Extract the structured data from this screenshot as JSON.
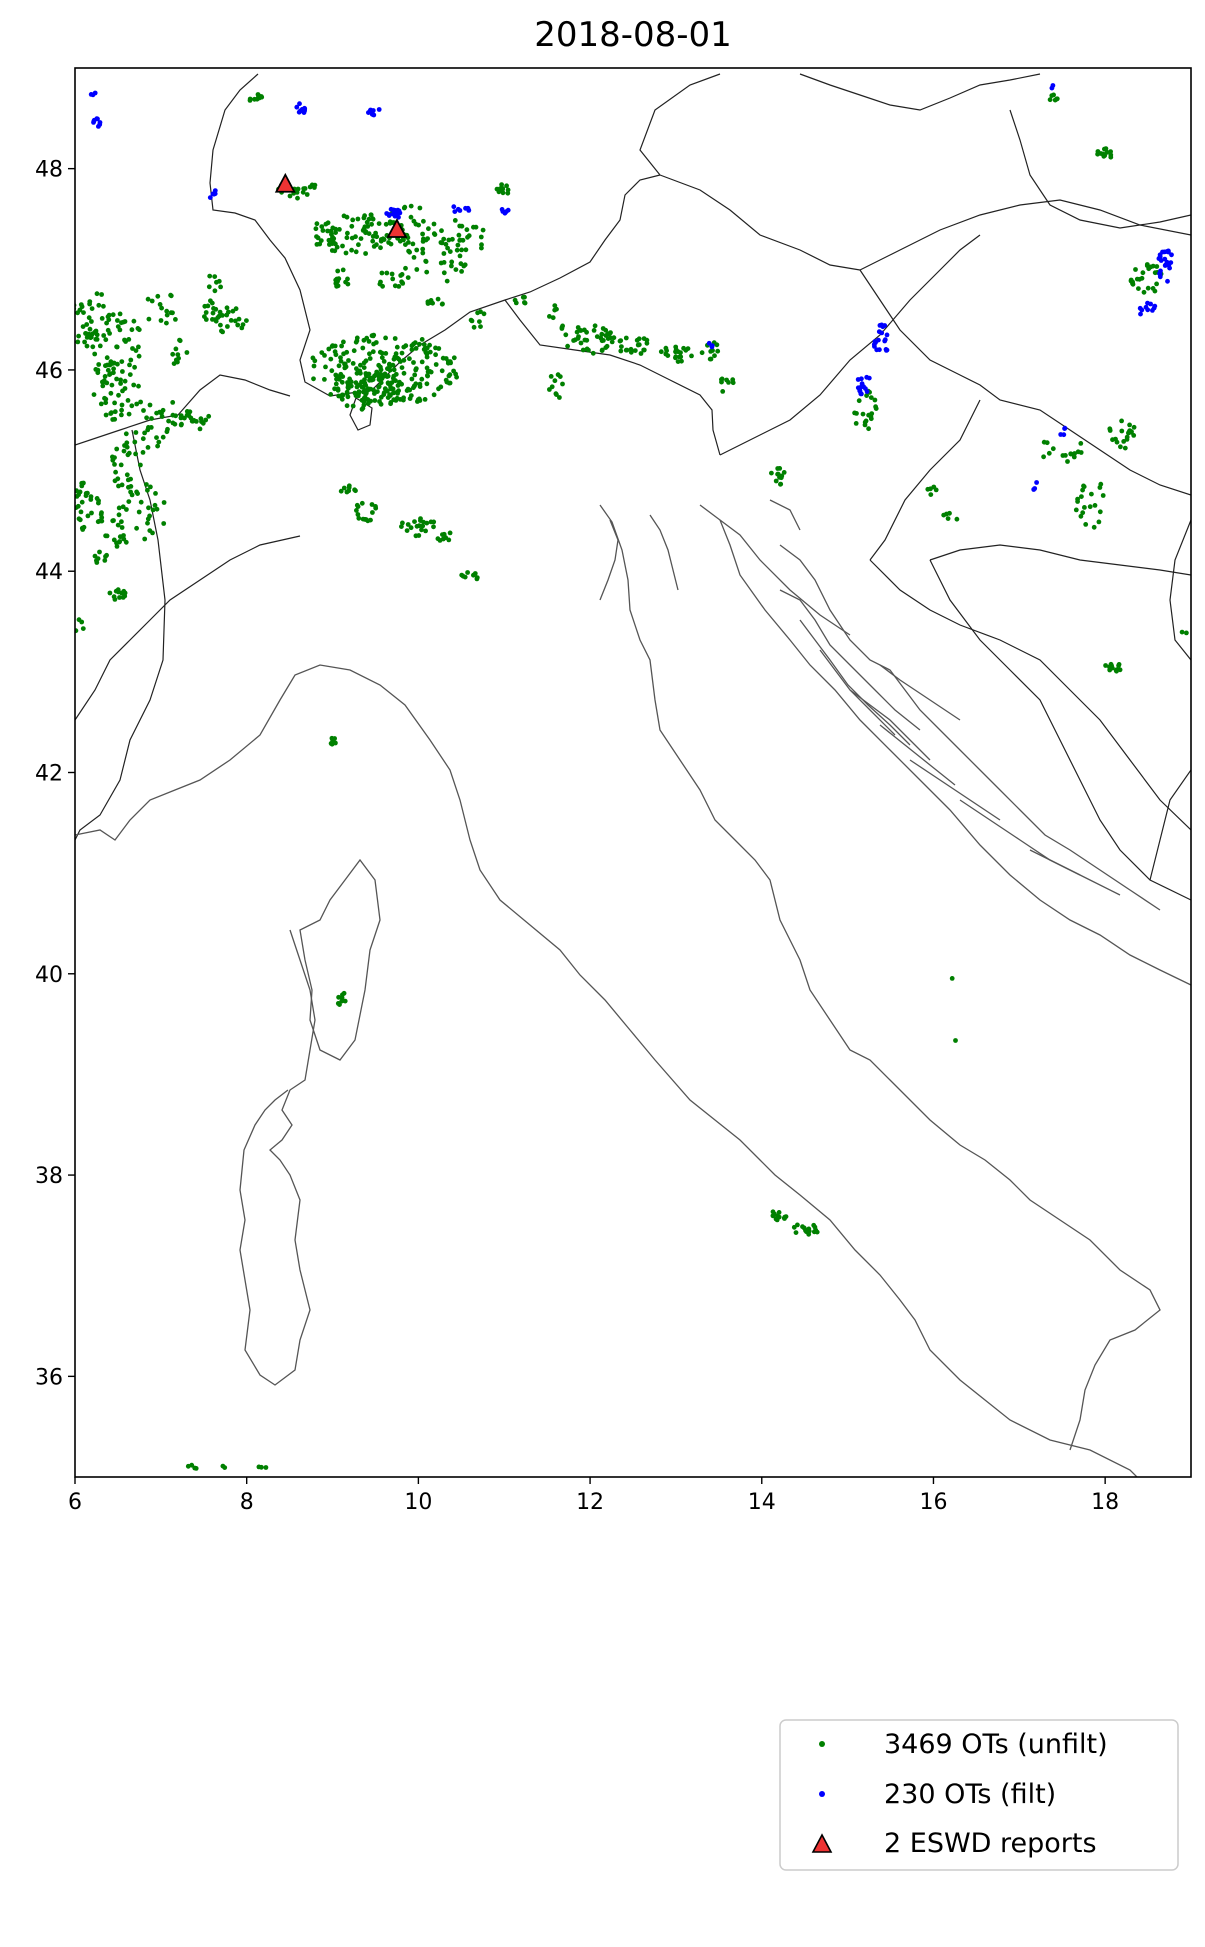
{
  "chart_data": {
    "type": "scatter",
    "title": "2018-08-01",
    "xlim": [
      6,
      19
    ],
    "ylim": [
      35,
      49
    ],
    "x_ticks": [
      6,
      8,
      10,
      12,
      14,
      16,
      18
    ],
    "y_ticks": [
      36,
      38,
      40,
      42,
      44,
      46,
      48
    ],
    "grid": false,
    "legend_position": "bottom-right",
    "colors": {
      "unfiltered": "#008000",
      "filtered": "#0000ff",
      "reports": "#ee3333",
      "coast": "#555555"
    },
    "series": [
      {
        "name": "3469 OTs (unfilt)",
        "marker": "dot",
        "clusters": [
          [
            6.2,
            46.5,
            0.25,
            0.3,
            40
          ],
          [
            6.5,
            46.2,
            0.3,
            0.4,
            50
          ],
          [
            6.5,
            45.8,
            0.3,
            0.3,
            40
          ],
          [
            6.6,
            45.1,
            0.2,
            0.3,
            25
          ],
          [
            6.9,
            45.5,
            0.3,
            0.3,
            30
          ],
          [
            6.8,
            44.6,
            0.3,
            0.3,
            30
          ],
          [
            7.0,
            46.6,
            0.2,
            0.2,
            15
          ],
          [
            7.2,
            46.2,
            0.15,
            0.15,
            10
          ],
          [
            7.4,
            45.5,
            0.2,
            0.1,
            20
          ],
          [
            7.6,
            46.7,
            0.15,
            0.25,
            20
          ],
          [
            7.8,
            46.5,
            0.2,
            0.15,
            20
          ],
          [
            6.15,
            44.6,
            0.2,
            0.2,
            25
          ],
          [
            6.5,
            44.4,
            0.15,
            0.2,
            15
          ],
          [
            6.5,
            43.8,
            0.1,
            0.1,
            12
          ],
          [
            6.3,
            44.1,
            0.1,
            0.1,
            8
          ],
          [
            6.1,
            44.8,
            0.1,
            0.1,
            8
          ],
          [
            8.1,
            48.7,
            0.08,
            0.05,
            10
          ],
          [
            8.6,
            47.8,
            0.25,
            0.1,
            20
          ],
          [
            9.3,
            47.35,
            0.6,
            0.2,
            90
          ],
          [
            9.1,
            46.9,
            0.1,
            0.1,
            12
          ],
          [
            9.7,
            46.9,
            0.2,
            0.1,
            15
          ],
          [
            9.9,
            47.4,
            0.3,
            0.25,
            30
          ],
          [
            10.2,
            47.1,
            0.4,
            0.25,
            30
          ],
          [
            10.5,
            47.3,
            0.3,
            0.2,
            25
          ],
          [
            11.0,
            47.8,
            0.1,
            0.05,
            10
          ],
          [
            9.6,
            46.0,
            0.9,
            0.35,
            220
          ],
          [
            9.4,
            45.8,
            0.4,
            0.2,
            70
          ],
          [
            10.2,
            46.7,
            0.1,
            0.1,
            8
          ],
          [
            10.7,
            46.5,
            0.1,
            0.1,
            8
          ],
          [
            11.2,
            46.7,
            0.1,
            0.05,
            6
          ],
          [
            11.6,
            46.5,
            0.1,
            0.15,
            8
          ],
          [
            12.0,
            46.3,
            0.3,
            0.15,
            40
          ],
          [
            12.5,
            46.25,
            0.2,
            0.1,
            20
          ],
          [
            11.6,
            45.85,
            0.1,
            0.15,
            10
          ],
          [
            13.0,
            46.15,
            0.2,
            0.1,
            20
          ],
          [
            13.4,
            46.2,
            0.1,
            0.1,
            10
          ],
          [
            13.6,
            45.85,
            0.1,
            0.1,
            8
          ],
          [
            9.2,
            44.8,
            0.1,
            0.05,
            8
          ],
          [
            9.4,
            44.6,
            0.15,
            0.1,
            15
          ],
          [
            10.0,
            44.45,
            0.2,
            0.1,
            20
          ],
          [
            10.3,
            44.35,
            0.1,
            0.05,
            8
          ],
          [
            10.6,
            43.95,
            0.1,
            0.05,
            8
          ],
          [
            15.2,
            45.6,
            0.15,
            0.2,
            20
          ],
          [
            14.2,
            44.95,
            0.1,
            0.1,
            12
          ],
          [
            9.0,
            42.3,
            0.05,
            0.05,
            8
          ],
          [
            9.1,
            39.75,
            0.05,
            0.08,
            8
          ],
          [
            14.2,
            37.6,
            0.1,
            0.05,
            12
          ],
          [
            14.5,
            37.45,
            0.15,
            0.08,
            15
          ],
          [
            18.0,
            48.15,
            0.1,
            0.05,
            12
          ],
          [
            18.5,
            46.9,
            0.2,
            0.15,
            25
          ],
          [
            18.2,
            45.4,
            0.15,
            0.2,
            20
          ],
          [
            17.5,
            45.2,
            0.3,
            0.15,
            15
          ],
          [
            17.8,
            44.7,
            0.2,
            0.3,
            20
          ],
          [
            18.1,
            43.05,
            0.1,
            0.05,
            12
          ],
          [
            17.4,
            48.7,
            0.05,
            0.05,
            6
          ],
          [
            14.3,
            47.3,
            0.1,
            0.1,
            0
          ],
          [
            16.2,
            39.95,
            0.02,
            0.02,
            1
          ],
          [
            16.25,
            39.35,
            0.02,
            0.02,
            1
          ],
          [
            7.35,
            35.1,
            0.1,
            0.02,
            4
          ],
          [
            7.65,
            35.1,
            0.1,
            0.02,
            2
          ],
          [
            8.2,
            35.1,
            0.1,
            0.02,
            3
          ],
          [
            6.05,
            43.45,
            0.05,
            0.08,
            4
          ],
          [
            16.0,
            44.8,
            0.1,
            0.05,
            5
          ],
          [
            16.2,
            44.55,
            0.1,
            0.05,
            5
          ],
          [
            18.9,
            43.4,
            0.05,
            0.05,
            2
          ]
        ]
      },
      {
        "name": "230 OTs (filt)",
        "marker": "dot",
        "clusters": [
          [
            6.25,
            48.45,
            0.05,
            0.05,
            8
          ],
          [
            6.2,
            48.75,
            0.05,
            0.02,
            3
          ],
          [
            8.65,
            48.6,
            0.1,
            0.05,
            10
          ],
          [
            9.5,
            48.55,
            0.1,
            0.05,
            8
          ],
          [
            9.7,
            47.55,
            0.1,
            0.05,
            15
          ],
          [
            10.5,
            47.6,
            0.1,
            0.05,
            8
          ],
          [
            11.0,
            47.6,
            0.05,
            0.05,
            5
          ],
          [
            7.6,
            47.75,
            0.05,
            0.05,
            5
          ],
          [
            15.4,
            46.3,
            0.1,
            0.15,
            20
          ],
          [
            15.2,
            45.85,
            0.1,
            0.1,
            15
          ],
          [
            18.7,
            47.05,
            0.1,
            0.2,
            25
          ],
          [
            18.5,
            46.6,
            0.1,
            0.1,
            10
          ],
          [
            17.5,
            45.4,
            0.05,
            0.05,
            4
          ],
          [
            17.2,
            44.85,
            0.05,
            0.05,
            3
          ],
          [
            13.4,
            46.25,
            0.03,
            0.03,
            3
          ],
          [
            17.4,
            48.8,
            0.03,
            0.03,
            2
          ]
        ]
      },
      {
        "name": "2 ESWD reports",
        "marker": "triangle",
        "points": [
          [
            8.45,
            47.85
          ],
          [
            9.75,
            47.4
          ]
        ]
      }
    ]
  },
  "map": {
    "features": [
      "coastline",
      "country borders"
    ]
  }
}
